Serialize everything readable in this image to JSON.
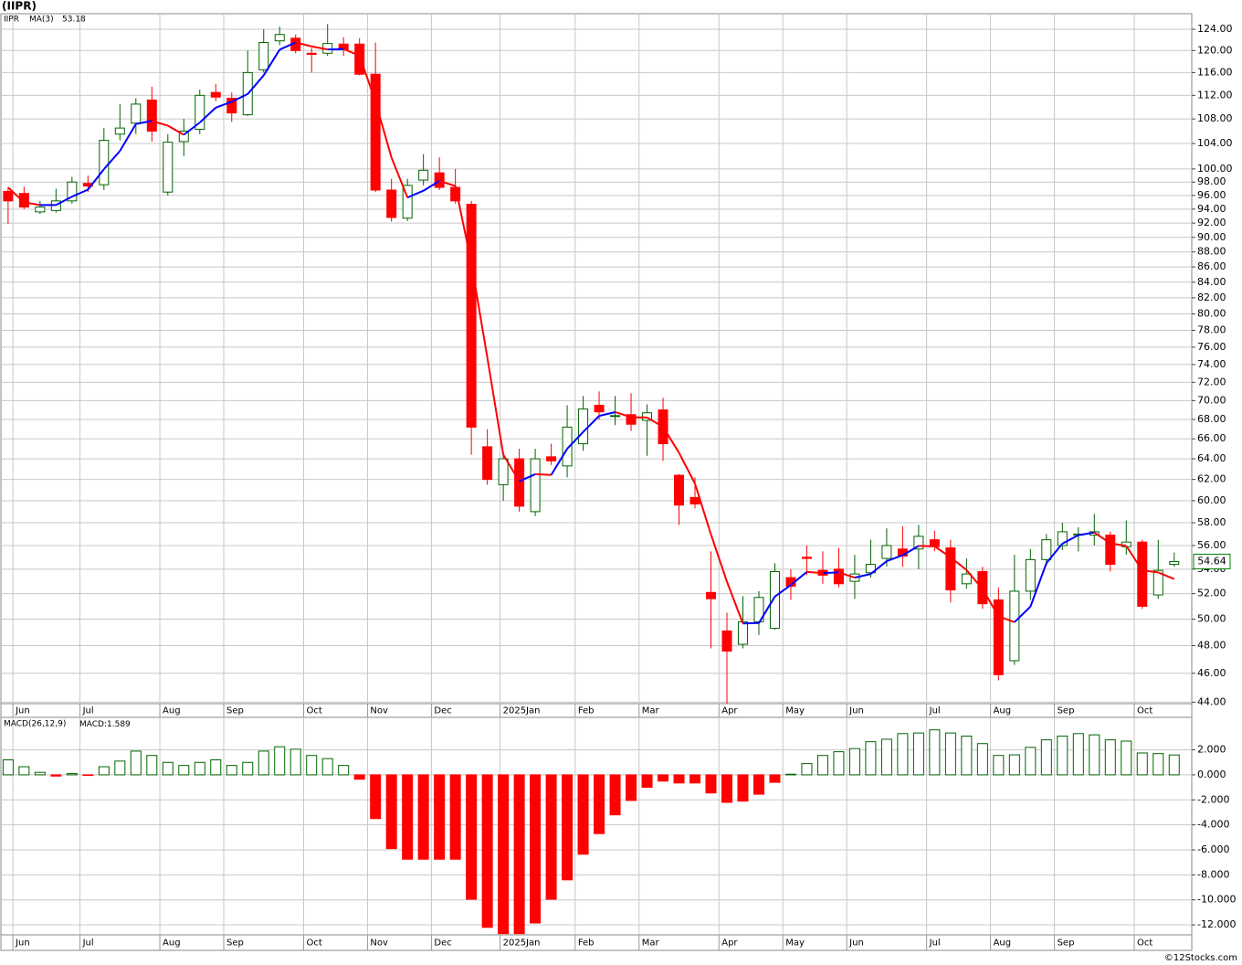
{
  "chart_data": [
    {
      "type": "candlestick",
      "title": "(IIPR)",
      "symbol": "IIPR",
      "categories": [
        null,
        null,
        null,
        null,
        null,
        null,
        null,
        null,
        null,
        null,
        null,
        null,
        null,
        null,
        null,
        null,
        null,
        null,
        null,
        null,
        null,
        null,
        null,
        null,
        null,
        null,
        null,
        null,
        null,
        null,
        null,
        null,
        null,
        null,
        null,
        null,
        null,
        null,
        null,
        null,
        null,
        null,
        null,
        null,
        null,
        null,
        null,
        null,
        null,
        null,
        null,
        null,
        null,
        null,
        null,
        null,
        null,
        null,
        null,
        null,
        null,
        null,
        null,
        null,
        null,
        null,
        null,
        null,
        null,
        null,
        null,
        null,
        null,
        null
      ],
      "open": [
        96.6,
        96.3,
        93.6,
        93.8,
        95.2,
        97.8,
        97.6,
        105.5,
        107.3,
        111.2,
        96.5,
        104.3,
        106.3,
        112.5,
        111.5,
        108.7,
        116.5,
        121.8,
        122.3,
        119.5,
        119.5,
        121.2,
        121.2,
        115.7,
        96.8,
        92.7,
        98.3,
        99.4,
        97.2,
        94.7,
        65.2,
        61.5,
        64,
        59,
        64.2,
        63.3,
        65.5,
        69.5,
        68.4,
        68.5,
        67.9,
        69,
        62.4,
        60.3,
        52.1,
        49.1,
        48.1,
        49.8,
        49.3,
        53.3,
        55,
        53.9,
        54,
        53,
        53.7,
        54.9,
        55.7,
        55.7,
        56.5,
        55.8,
        52.8,
        53.8,
        51.5,
        46.9,
        52.2,
        54.8,
        56,
        56.9,
        56.9,
        56.9,
        55.9,
        56.3,
        51.9,
        54.4
      ],
      "high": [
        97.2,
        97.3,
        95.2,
        97,
        98.8,
        99,
        106.5,
        110.5,
        111.5,
        113.5,
        105.5,
        108,
        113,
        114,
        112.5,
        120,
        124,
        124.5,
        123,
        120.5,
        125,
        122.5,
        122.3,
        121.5,
        98.5,
        98.5,
        102.3,
        101.8,
        100,
        95.2,
        67,
        64.5,
        65,
        65,
        65.5,
        69.5,
        70.5,
        71,
        70.5,
        70.8,
        69.6,
        70.3,
        62.5,
        62.2,
        55.5,
        50.5,
        51.8,
        52.2,
        54.5,
        54,
        56,
        55.5,
        55.8,
        55.2,
        56.5,
        57.5,
        57.7,
        57.8,
        57.3,
        56.5,
        54.9,
        54.2,
        52.5,
        55.2,
        55.7,
        57,
        58,
        57.6,
        58.8,
        57.2,
        58.2,
        56.5,
        56.5,
        55.4
      ],
      "low": [
        91.9,
        94,
        93.3,
        93.5,
        94.8,
        96.5,
        96.8,
        104.5,
        105.5,
        104.3,
        96,
        102,
        105.5,
        111,
        107.5,
        108.5,
        116,
        121,
        119.5,
        116,
        119,
        119,
        115.5,
        96.5,
        92.2,
        92.3,
        97.5,
        96.8,
        94.8,
        64.4,
        61.5,
        60,
        59,
        58.6,
        63.4,
        62.2,
        64.8,
        68,
        67.4,
        66.8,
        64.3,
        63.8,
        57.8,
        59.3,
        47.8,
        43.9,
        47.8,
        48.8,
        49.2,
        51.5,
        53.5,
        52.8,
        52.5,
        51.6,
        53.3,
        54.2,
        54.2,
        54,
        55.5,
        51.3,
        52.4,
        50.8,
        45.5,
        46.6,
        51.5,
        54.3,
        55.6,
        55.5,
        56,
        53.8,
        55.2,
        50.8,
        51.6,
        54.2
      ],
      "close": [
        95.2,
        94.3,
        94.3,
        95.2,
        98,
        97.4,
        104.5,
        106.5,
        110.5,
        106,
        104.2,
        106,
        112,
        111.7,
        109,
        116,
        121.5,
        123,
        120,
        119.3,
        121.3,
        120.2,
        115.7,
        96.8,
        92.8,
        97.5,
        99.8,
        97.2,
        95.2,
        67.2,
        62,
        64,
        59.5,
        64,
        63.8,
        67.2,
        69.1,
        68.8,
        68.4,
        67.5,
        68.7,
        65.5,
        59.6,
        59.7,
        51.6,
        47.6,
        49.8,
        51.7,
        53.8,
        52.6,
        54.9,
        53.5,
        52.8,
        53.6,
        54.4,
        56,
        55.1,
        56.8,
        55.9,
        52.3,
        53.6,
        51.2,
        45.9,
        52.2,
        54.8,
        56.5,
        57.2,
        57,
        57.2,
        54.4,
        56.3,
        51,
        53.9,
        54.64
      ],
      "up_color": "#006400",
      "down_color": "#ff0000",
      "last_color": "#008000",
      "ma": {
        "name": "MA(3)",
        "rising_color": "#0000ff",
        "falling_color": "#ff0000",
        "values": [
          97.2,
          95.0,
          94.6,
          94.6,
          95.83,
          96.87,
          99.97,
          102.8,
          107.17,
          107.67,
          106.9,
          105.4,
          107.4,
          109.9,
          110.9,
          112.23,
          115.5,
          120.17,
          121.5,
          120.77,
          120.2,
          120.27,
          119.07,
          110.9,
          101.77,
          95.7,
          96.7,
          98.17,
          97.4,
          86.53,
          74.8,
          64.4,
          61.83,
          62.5,
          62.43,
          65.0,
          66.7,
          68.37,
          68.77,
          68.23,
          68.2,
          67.23,
          64.6,
          61.6,
          56.97,
          52.97,
          49.67,
          49.7,
          51.77,
          52.7,
          53.77,
          53.67,
          53.73,
          53.3,
          53.6,
          54.67,
          55.17,
          55.97,
          55.93,
          55.0,
          53.93,
          52.37,
          50.23,
          49.77,
          50.97,
          54.5,
          56.17,
          56.9,
          57.13,
          56.2,
          55.97,
          53.9,
          53.73,
          53.18
        ]
      },
      "log_scale": true,
      "grid": true,
      "xlim": [
        -0.45,
        74.1
      ],
      "xticks": [
        {
          "value": 0.3,
          "label": "Jun"
        },
        {
          "value": 4.5,
          "label": "Jul"
        },
        {
          "value": 9.5,
          "label": "Aug"
        },
        {
          "value": 13.5,
          "label": "Sep"
        },
        {
          "value": 18.5,
          "label": "Oct"
        },
        {
          "value": 22.5,
          "label": "Nov"
        },
        {
          "value": 26.5,
          "label": "Dec"
        },
        {
          "value": 30.8,
          "label": "2025Jan"
        },
        {
          "value": 35.5,
          "label": "Feb"
        },
        {
          "value": 39.5,
          "label": "Mar"
        },
        {
          "value": 44.5,
          "label": "Apr"
        },
        {
          "value": 48.5,
          "label": "May"
        },
        {
          "value": 52.5,
          "label": "Jun"
        },
        {
          "value": 57.5,
          "label": "Jul"
        },
        {
          "value": 61.5,
          "label": "Aug"
        },
        {
          "value": 65.5,
          "label": "Sep"
        },
        {
          "value": 70.5,
          "label": "Oct"
        }
      ],
      "ylim": [
        43.9,
        127
      ],
      "yticks": [
        {
          "value": 44,
          "label": "44.00"
        },
        {
          "value": 46,
          "label": "46.00"
        },
        {
          "value": 48,
          "label": "48.00"
        },
        {
          "value": 50,
          "label": "50.00"
        },
        {
          "value": 52,
          "label": "52.00"
        },
        {
          "value": 54,
          "label": "54.00"
        },
        {
          "value": 56,
          "label": "56.00"
        },
        {
          "value": 58,
          "label": "58.00"
        },
        {
          "value": 60,
          "label": "60.00"
        },
        {
          "value": 62,
          "label": "62.00"
        },
        {
          "value": 64,
          "label": "64.00"
        },
        {
          "value": 66,
          "label": "66.00"
        },
        {
          "value": 68,
          "label": "68.00"
        },
        {
          "value": 70,
          "label": "70.00"
        },
        {
          "value": 72,
          "label": "72.00"
        },
        {
          "value": 74,
          "label": "74.00"
        },
        {
          "value": 76,
          "label": "76.00"
        },
        {
          "value": 78,
          "label": "78.00"
        },
        {
          "value": 80,
          "label": "80.00"
        },
        {
          "value": 82,
          "label": "82.00"
        },
        {
          "value": 84,
          "label": "84.00"
        },
        {
          "value": 86,
          "label": "86.00"
        },
        {
          "value": 88,
          "label": "88.00"
        },
        {
          "value": 90,
          "label": "90.00"
        },
        {
          "value": 92,
          "label": "92.00"
        },
        {
          "value": 94,
          "label": "94.00"
        },
        {
          "value": 96,
          "label": "96.00"
        },
        {
          "value": 98,
          "label": "98.00"
        },
        {
          "value": 100,
          "label": "100.00"
        },
        {
          "value": 104,
          "label": "104.00"
        },
        {
          "value": 108,
          "label": "108.00"
        },
        {
          "value": 112,
          "label": "112.00"
        },
        {
          "value": 116,
          "label": "116.00"
        },
        {
          "value": 120,
          "label": "120.00"
        },
        {
          "value": 124,
          "label": "124.00"
        }
      ]
    },
    {
      "type": "bar",
      "name": "MACD(26,12,9)",
      "value_prefix": "MACD:",
      "categories": [
        null,
        null,
        null,
        null,
        null,
        null,
        null,
        null,
        null,
        null,
        null,
        null,
        null,
        null,
        null,
        null,
        null,
        null,
        null,
        null,
        null,
        null,
        null,
        null,
        null,
        null,
        null,
        null,
        null,
        null,
        null,
        null,
        null,
        null,
        null,
        null,
        null,
        null,
        null,
        null,
        null,
        null,
        null,
        null,
        null,
        null,
        null,
        null,
        null,
        null,
        null,
        null,
        null,
        null,
        null,
        null,
        null,
        null,
        null,
        null,
        null,
        null,
        null,
        null,
        null,
        null,
        null,
        null,
        null,
        null,
        null,
        null,
        null,
        null
      ],
      "values": [
        1.2,
        0.65,
        0.2,
        -0.1,
        0.1,
        -0.05,
        0.65,
        1.1,
        1.9,
        1.55,
        1.0,
        0.75,
        1.0,
        1.2,
        0.75,
        1.0,
        1.9,
        2.25,
        2.05,
        1.55,
        1.3,
        0.75,
        -0.35,
        -3.5,
        -5.9,
        -6.75,
        -6.75,
        -6.75,
        -6.75,
        -9.95,
        -12.2,
        -12.7,
        -12.7,
        -11.85,
        -9.95,
        -8.4,
        -6.35,
        -4.7,
        -3.2,
        -2.05,
        -1.0,
        -0.5,
        -0.65,
        -0.65,
        -1.45,
        -2.2,
        -2.1,
        -1.55,
        -0.6,
        0.05,
        0.9,
        1.55,
        1.85,
        2.1,
        2.65,
        2.85,
        3.3,
        3.35,
        3.6,
        3.35,
        3.1,
        2.5,
        1.55,
        1.6,
        2.2,
        2.8,
        3.1,
        3.3,
        3.2,
        2.8,
        2.7,
        1.75,
        1.7,
        1.589
      ],
      "positive_color": "#006400",
      "negative_color": "#ff0000",
      "legend_value_color": "#0000ff",
      "grid": true,
      "xlim": [
        -0.45,
        74.1
      ],
      "xticks": [
        {
          "value": 0.3,
          "label": "Jun"
        },
        {
          "value": 4.5,
          "label": "Jul"
        },
        {
          "value": 9.5,
          "label": "Aug"
        },
        {
          "value": 13.5,
          "label": "Sep"
        },
        {
          "value": 18.5,
          "label": "Oct"
        },
        {
          "value": 22.5,
          "label": "Nov"
        },
        {
          "value": 26.5,
          "label": "Dec"
        },
        {
          "value": 30.8,
          "label": "2025Jan"
        },
        {
          "value": 35.5,
          "label": "Feb"
        },
        {
          "value": 39.5,
          "label": "Mar"
        },
        {
          "value": 44.5,
          "label": "Apr"
        },
        {
          "value": 48.5,
          "label": "May"
        },
        {
          "value": 52.5,
          "label": "Jun"
        },
        {
          "value": 57.5,
          "label": "Jul"
        },
        {
          "value": 61.5,
          "label": "Aug"
        },
        {
          "value": 65.5,
          "label": "Sep"
        },
        {
          "value": 70.5,
          "label": "Oct"
        }
      ],
      "ylim": [
        -12.8,
        4.6
      ],
      "yticks": [
        {
          "value": 2,
          "label": "2.000"
        },
        {
          "value": 0,
          "label": "0.000"
        },
        {
          "value": -2,
          "label": "-2.000"
        },
        {
          "value": -4,
          "label": "-4.000"
        },
        {
          "value": -6,
          "label": "-6.000"
        },
        {
          "value": -8,
          "label": "-8.000"
        },
        {
          "value": -10,
          "label": "-10.000"
        },
        {
          "value": -12,
          "label": "-12.000"
        }
      ]
    }
  ],
  "footer": "©12Stocks.com"
}
